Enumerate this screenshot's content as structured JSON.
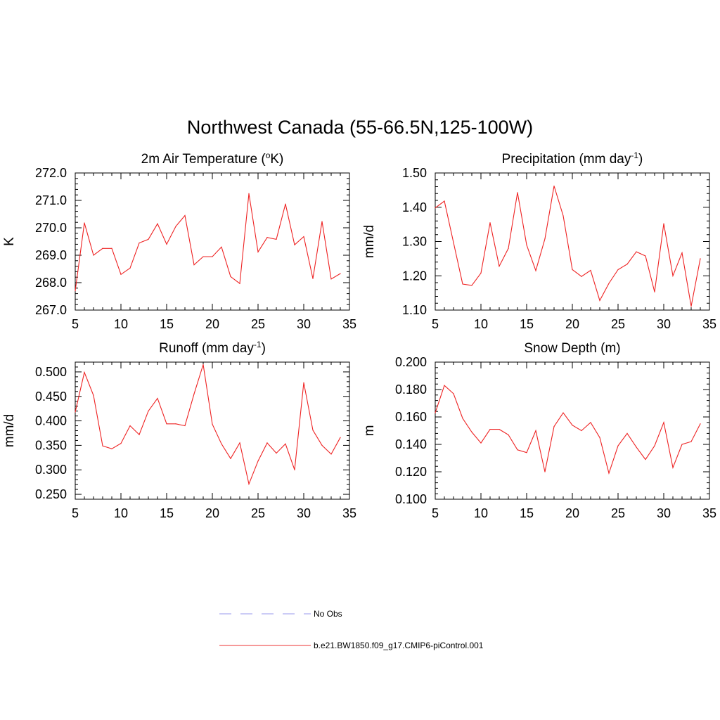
{
  "figure": {
    "title": "Northwest Canada (55-66.5N,125-100W)"
  },
  "legend": {
    "entries": [
      {
        "label": "No Obs",
        "color": "#9999ee",
        "dashed": true
      },
      {
        "label": "b.e21.BW1850.f09_g17.CMIP6-piControl.001",
        "color": "#ee3333",
        "dashed": false
      }
    ]
  },
  "chart_data": [
    {
      "type": "line",
      "id": "temp",
      "title_main": "2m Air Temperature (",
      "title_sup": "o",
      "title_tail": "K)",
      "ylabel": "K",
      "xlim": [
        5,
        35
      ],
      "ylim": [
        267.0,
        272.0
      ],
      "xticks": [
        5,
        10,
        15,
        20,
        25,
        30,
        35
      ],
      "yticks": [
        "267.0",
        "268.0",
        "269.0",
        "270.0",
        "271.0",
        "272.0"
      ],
      "ytick_values": [
        267.0,
        268.0,
        269.0,
        270.0,
        271.0,
        272.0
      ],
      "x": [
        5,
        6,
        7,
        8,
        9,
        10,
        11,
        12,
        13,
        14,
        15,
        16,
        17,
        18,
        19,
        20,
        21,
        22,
        23,
        24,
        25,
        26,
        27,
        28,
        29,
        30,
        31,
        32,
        33,
        34
      ],
      "series": [
        {
          "name": "b.e21.BW1850.f09_g17.CMIP6-piControl.001",
          "values": [
            267.7,
            270.18,
            269.0,
            269.25,
            269.25,
            268.3,
            268.53,
            269.45,
            269.58,
            270.15,
            269.4,
            270.05,
            270.45,
            268.65,
            268.95,
            268.95,
            269.3,
            268.22,
            267.97,
            271.25,
            269.12,
            269.65,
            269.58,
            270.87,
            269.38,
            269.68,
            268.15,
            270.23,
            268.13,
            268.33
          ]
        }
      ]
    },
    {
      "type": "line",
      "id": "precip",
      "title_main": "Precipitation (mm day",
      "title_sup": "-1",
      "title_tail": ")",
      "ylabel": "mm/d",
      "xlim": [
        5,
        35
      ],
      "ylim": [
        1.1,
        1.5
      ],
      "xticks": [
        5,
        10,
        15,
        20,
        25,
        30,
        35
      ],
      "yticks": [
        "1.10",
        "1.20",
        "1.30",
        "1.40",
        "1.50"
      ],
      "ytick_values": [
        1.1,
        1.2,
        1.3,
        1.4,
        1.5
      ],
      "x": [
        5,
        6,
        7,
        8,
        9,
        10,
        11,
        12,
        13,
        14,
        15,
        16,
        17,
        18,
        19,
        20,
        21,
        22,
        23,
        24,
        25,
        26,
        27,
        28,
        29,
        30,
        31,
        32,
        33,
        34
      ],
      "series": [
        {
          "name": "b.e21.BW1850.f09_g17.CMIP6-piControl.001",
          "values": [
            1.398,
            1.418,
            1.297,
            1.176,
            1.172,
            1.208,
            1.355,
            1.228,
            1.28,
            1.443,
            1.29,
            1.215,
            1.308,
            1.462,
            1.375,
            1.218,
            1.198,
            1.216,
            1.128,
            1.178,
            1.218,
            1.234,
            1.27,
            1.258,
            1.153,
            1.352,
            1.2,
            1.267,
            1.111,
            1.25
          ]
        }
      ]
    },
    {
      "type": "line",
      "id": "runoff",
      "title_main": "Runoff (mm day",
      "title_sup": "-1",
      "title_tail": ")",
      "ylabel": "mm/d",
      "xlim": [
        5,
        35
      ],
      "ylim": [
        0.24,
        0.52
      ],
      "xticks": [
        5,
        10,
        15,
        20,
        25,
        30,
        35
      ],
      "yticks": [
        "0.250",
        "0.300",
        "0.350",
        "0.400",
        "0.450",
        "0.500"
      ],
      "ytick_values": [
        0.25,
        0.3,
        0.35,
        0.4,
        0.45,
        0.5
      ],
      "x": [
        5,
        6,
        7,
        8,
        9,
        10,
        11,
        12,
        13,
        14,
        15,
        16,
        17,
        18,
        19,
        20,
        21,
        22,
        23,
        24,
        25,
        26,
        27,
        28,
        29,
        30,
        31,
        32,
        33,
        34
      ],
      "series": [
        {
          "name": "b.e21.BW1850.f09_g17.CMIP6-piControl.001",
          "values": [
            0.418,
            0.499,
            0.452,
            0.349,
            0.343,
            0.354,
            0.39,
            0.372,
            0.42,
            0.446,
            0.394,
            0.394,
            0.39,
            0.455,
            0.515,
            0.393,
            0.353,
            0.323,
            0.355,
            0.271,
            0.318,
            0.355,
            0.334,
            0.353,
            0.3,
            0.478,
            0.381,
            0.35,
            0.332,
            0.366
          ]
        }
      ]
    },
    {
      "type": "line",
      "id": "snow",
      "title_main": "Snow Depth (m)",
      "title_sup": "",
      "title_tail": "",
      "ylabel": "m",
      "xlim": [
        5,
        35
      ],
      "ylim": [
        0.1,
        0.2
      ],
      "xticks": [
        5,
        10,
        15,
        20,
        25,
        30,
        35
      ],
      "yticks": [
        "0.100",
        "0.120",
        "0.140",
        "0.160",
        "0.180",
        "0.200"
      ],
      "ytick_values": [
        0.1,
        0.12,
        0.14,
        0.16,
        0.18,
        0.2
      ],
      "x": [
        5,
        6,
        7,
        8,
        9,
        10,
        11,
        12,
        13,
        14,
        15,
        16,
        17,
        18,
        19,
        20,
        21,
        22,
        23,
        24,
        25,
        26,
        27,
        28,
        29,
        30,
        31,
        32,
        33,
        34
      ],
      "series": [
        {
          "name": "b.e21.BW1850.f09_g17.CMIP6-piControl.001",
          "values": [
            0.163,
            0.183,
            0.177,
            0.159,
            0.149,
            0.141,
            0.151,
            0.151,
            0.147,
            0.136,
            0.134,
            0.15,
            0.12,
            0.153,
            0.163,
            0.154,
            0.15,
            0.156,
            0.145,
            0.119,
            0.139,
            0.148,
            0.138,
            0.129,
            0.139,
            0.156,
            0.123,
            0.14,
            0.142,
            0.155
          ]
        }
      ]
    }
  ]
}
